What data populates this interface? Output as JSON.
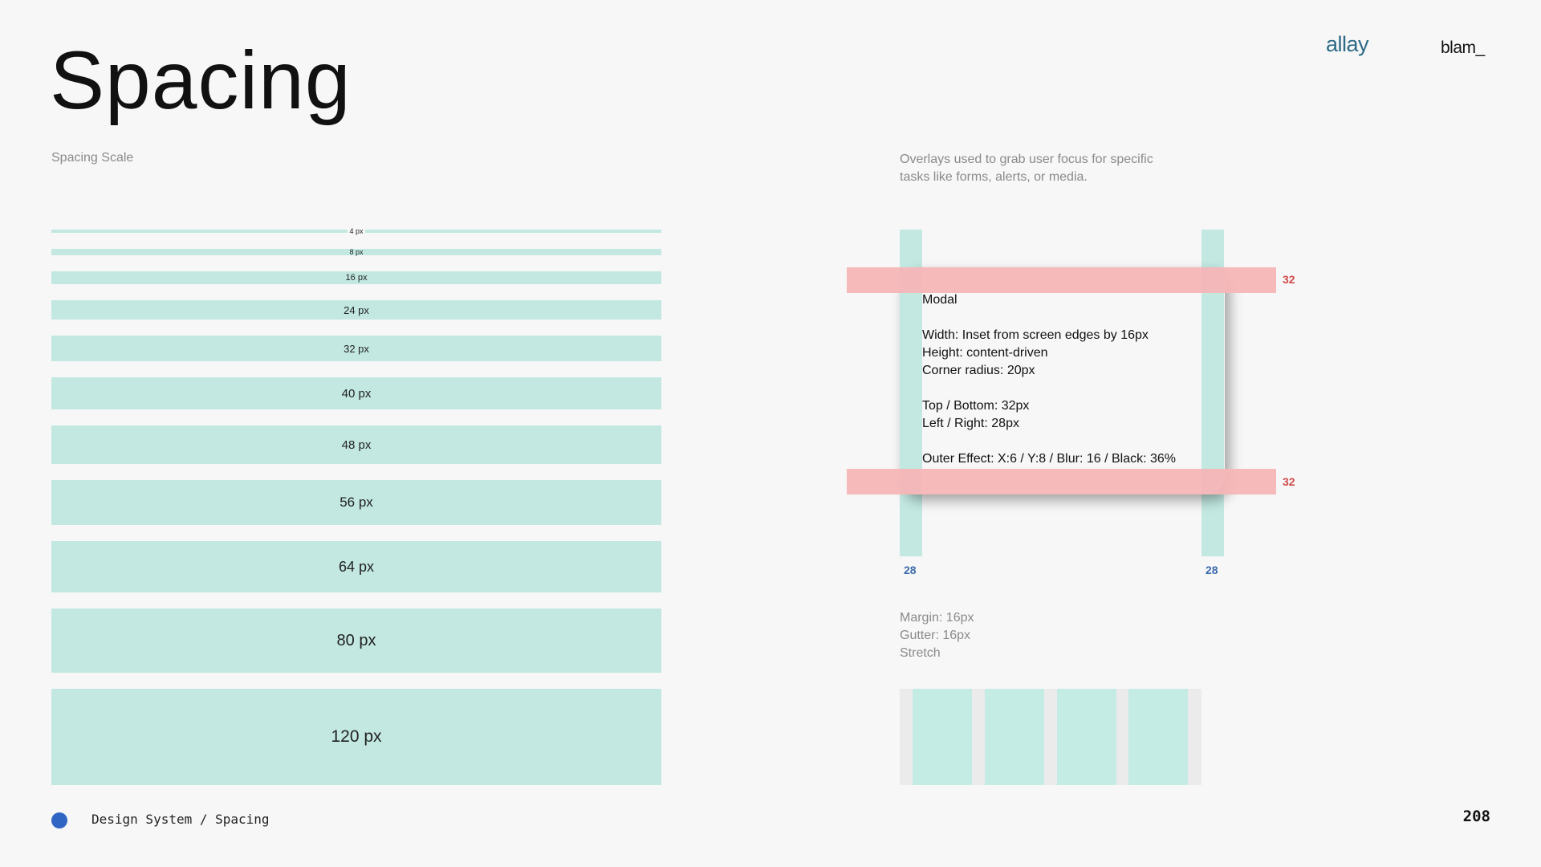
{
  "header": {
    "title": "Spacing",
    "brand_primary": "allay",
    "brand_secondary": "blam_"
  },
  "scale": {
    "label": "Spacing Scale",
    "steps": [
      "4 px",
      "8 px",
      "16 px",
      "24 px",
      "32 px",
      "40 px",
      "48 px",
      "56 px",
      "64 px",
      "80 px",
      "120 px"
    ]
  },
  "modal_spec": {
    "description": "Overlays used to grab user focus for specific tasks like forms, alerts, or media.",
    "title": "Modal",
    "width": "Width: Inset from screen edges by 16px",
    "height": "Height: content-driven",
    "radius": "Corner radius: 20px",
    "top_bottom": "Top / Bottom: 32px",
    "left_right": "Left / Right: 28px",
    "effect": "Outer Effect: X:6 / Y:8 / Blur: 16 / Black: 36%",
    "top_measure": "32",
    "bottom_measure": "32",
    "left_measure": "28",
    "right_measure": "28"
  },
  "grid_spec": {
    "margin": "Margin: 16px",
    "gutter": "Gutter: 16px",
    "mode": "Stretch",
    "columns": 4
  },
  "footer": {
    "breadcrumb": "Design System / Spacing",
    "page_number": "208"
  },
  "colors": {
    "spacing_fill": "#c2e8e1",
    "vertical_guide": "#f6b6b7",
    "accent_dot": "#3165c4",
    "brand": "#2d6a86"
  }
}
